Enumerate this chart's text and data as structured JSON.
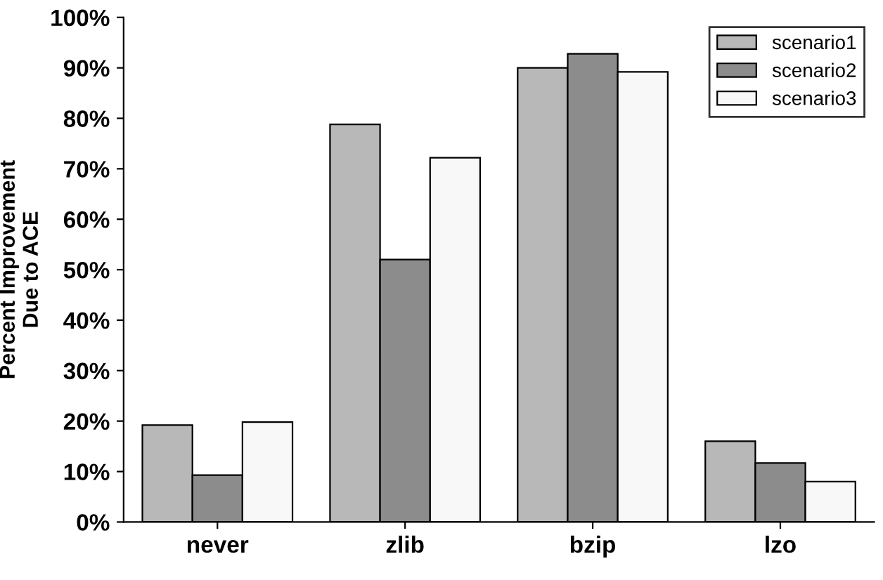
{
  "chart_data": {
    "type": "bar",
    "ylabel": "Percent Improvement\nDue to ACE",
    "categories": [
      "never",
      "zlib",
      "bzip",
      "lzo"
    ],
    "series": [
      {
        "name": "scenario1",
        "color": "#b8b8b8",
        "values": [
          19.2,
          78.8,
          90,
          16
        ]
      },
      {
        "name": "scenario2",
        "color": "#8c8c8c",
        "values": [
          9.3,
          52,
          92.8,
          11.7
        ]
      },
      {
        "name": "scenario3",
        "color": "#f8f8f8",
        "values": [
          19.8,
          72.2,
          89.2,
          8
        ]
      }
    ],
    "ylim": [
      0,
      100
    ],
    "yticks": [
      {
        "value": 0,
        "label": "0%"
      },
      {
        "value": 10,
        "label": "10%"
      },
      {
        "value": 20,
        "label": "20%"
      },
      {
        "value": 30,
        "label": "30%"
      },
      {
        "value": 40,
        "label": "40%"
      },
      {
        "value": 50,
        "label": "50%"
      },
      {
        "value": 60,
        "label": "60%"
      },
      {
        "value": 70,
        "label": "70%"
      },
      {
        "value": 80,
        "label": "80%"
      },
      {
        "value": 90,
        "label": "90%"
      },
      {
        "value": 100,
        "label": "100%"
      }
    ],
    "grid": false,
    "legend": "top right"
  }
}
